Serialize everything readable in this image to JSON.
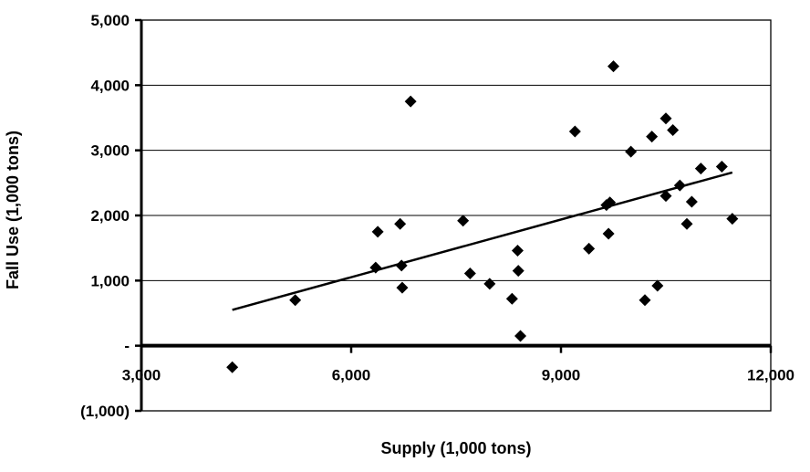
{
  "chart_data": {
    "type": "scatter",
    "xlabel": "Supply (1,000 tons)",
    "ylabel": "Fall Use (1,000 tons)",
    "xlim": [
      3000,
      12000
    ],
    "ylim": [
      -1000,
      5000
    ],
    "x_ticks": [
      {
        "value": 3000,
        "label": "3,000"
      },
      {
        "value": 6000,
        "label": "6,000"
      },
      {
        "value": 9000,
        "label": "9,000"
      },
      {
        "value": 12000,
        "label": "12,000"
      }
    ],
    "y_ticks": [
      {
        "value": -1000,
        "label": "(1,000)"
      },
      {
        "value": 0,
        "label": "-"
      },
      {
        "value": 1000,
        "label": "1,000"
      },
      {
        "value": 2000,
        "label": "2,000"
      },
      {
        "value": 3000,
        "label": "3,000"
      },
      {
        "value": 4000,
        "label": "4,000"
      },
      {
        "value": 5000,
        "label": "5,000"
      }
    ],
    "grid": {
      "horizontal": true,
      "vertical": false
    },
    "marker": "diamond",
    "points": [
      {
        "x": 4300,
        "y": -330
      },
      {
        "x": 5200,
        "y": 700
      },
      {
        "x": 6350,
        "y": 1200
      },
      {
        "x": 6380,
        "y": 1750
      },
      {
        "x": 6700,
        "y": 1870
      },
      {
        "x": 6720,
        "y": 1230
      },
      {
        "x": 6730,
        "y": 890
      },
      {
        "x": 6850,
        "y": 3750
      },
      {
        "x": 7600,
        "y": 1920
      },
      {
        "x": 7700,
        "y": 1110
      },
      {
        "x": 7980,
        "y": 950
      },
      {
        "x": 8300,
        "y": 720
      },
      {
        "x": 8380,
        "y": 1460
      },
      {
        "x": 8390,
        "y": 1150
      },
      {
        "x": 8420,
        "y": 150
      },
      {
        "x": 9200,
        "y": 3290
      },
      {
        "x": 9400,
        "y": 1490
      },
      {
        "x": 9650,
        "y": 2160
      },
      {
        "x": 9700,
        "y": 2200
      },
      {
        "x": 9680,
        "y": 1720
      },
      {
        "x": 9750,
        "y": 4290
      },
      {
        "x": 10000,
        "y": 2980
      },
      {
        "x": 10200,
        "y": 700
      },
      {
        "x": 10300,
        "y": 3210
      },
      {
        "x": 10380,
        "y": 920
      },
      {
        "x": 10500,
        "y": 3490
      },
      {
        "x": 10500,
        "y": 2300
      },
      {
        "x": 10600,
        "y": 3310
      },
      {
        "x": 10700,
        "y": 2460
      },
      {
        "x": 10800,
        "y": 1870
      },
      {
        "x": 10870,
        "y": 2210
      },
      {
        "x": 11000,
        "y": 2720
      },
      {
        "x": 11300,
        "y": 2750
      },
      {
        "x": 11450,
        "y": 1950
      }
    ],
    "trendline": {
      "x": [
        4300,
        11450
      ],
      "y": [
        550,
        2660
      ]
    }
  }
}
